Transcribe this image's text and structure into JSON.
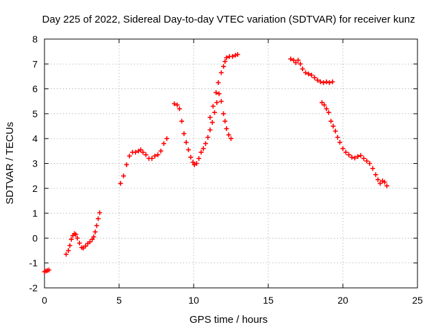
{
  "chart_data": {
    "type": "scatter",
    "title": "Day 225 of 2022, Sidereal Day-to-day VTEC variation (SDTVAR) for receiver kunz",
    "xlabel": "GPS time / hours",
    "ylabel": "SDTVAR / TECUs",
    "xlim": [
      0,
      25
    ],
    "ylim": [
      -2,
      8
    ],
    "x_ticks": [
      0,
      5,
      10,
      15,
      20,
      25
    ],
    "y_ticks": [
      -2,
      -1,
      0,
      1,
      2,
      3,
      4,
      5,
      6,
      7,
      8
    ],
    "grid": true,
    "marker": "plus",
    "color": "#ff0000",
    "series": [
      {
        "points": [
          [
            0.0,
            -1.35
          ],
          [
            0.1,
            -1.32
          ],
          [
            0.2,
            -1.3
          ],
          [
            0.3,
            -1.28
          ],
          [
            1.45,
            -0.65
          ],
          [
            1.6,
            -0.5
          ],
          [
            1.7,
            -0.3
          ],
          [
            1.8,
            -0.05
          ],
          [
            1.9,
            0.1
          ],
          [
            2.0,
            0.18
          ],
          [
            2.1,
            0.15
          ],
          [
            2.2,
            0.0
          ],
          [
            2.35,
            -0.2
          ],
          [
            2.5,
            -0.38
          ],
          [
            2.6,
            -0.4
          ],
          [
            2.75,
            -0.32
          ],
          [
            2.9,
            -0.22
          ],
          [
            3.05,
            -0.15
          ],
          [
            3.2,
            -0.05
          ],
          [
            3.3,
            0.05
          ],
          [
            3.4,
            0.25
          ],
          [
            3.5,
            0.5
          ],
          [
            3.6,
            0.78
          ],
          [
            3.7,
            1.02
          ],
          [
            5.1,
            2.2
          ],
          [
            5.3,
            2.5
          ],
          [
            5.5,
            2.95
          ],
          [
            5.7,
            3.3
          ],
          [
            5.9,
            3.45
          ],
          [
            6.1,
            3.45
          ],
          [
            6.3,
            3.5
          ],
          [
            6.45,
            3.55
          ],
          [
            6.6,
            3.45
          ],
          [
            6.8,
            3.35
          ],
          [
            7.0,
            3.2
          ],
          [
            7.2,
            3.2
          ],
          [
            7.4,
            3.3
          ],
          [
            7.6,
            3.35
          ],
          [
            7.8,
            3.5
          ],
          [
            8.0,
            3.8
          ],
          [
            8.2,
            4.0
          ],
          [
            8.7,
            5.4
          ],
          [
            8.9,
            5.35
          ],
          [
            9.05,
            5.2
          ],
          [
            9.2,
            4.7
          ],
          [
            9.35,
            4.2
          ],
          [
            9.5,
            3.85
          ],
          [
            9.65,
            3.55
          ],
          [
            9.8,
            3.25
          ],
          [
            9.95,
            3.05
          ],
          [
            10.05,
            2.95
          ],
          [
            10.2,
            3.0
          ],
          [
            10.35,
            3.2
          ],
          [
            10.5,
            3.45
          ],
          [
            10.65,
            3.6
          ],
          [
            10.8,
            3.8
          ],
          [
            10.95,
            4.05
          ],
          [
            11.1,
            4.35
          ],
          [
            11.25,
            4.65
          ],
          [
            11.4,
            5.05
          ],
          [
            11.55,
            5.45
          ],
          [
            11.7,
            5.8
          ],
          [
            11.85,
            5.5
          ],
          [
            12.0,
            5.0
          ],
          [
            12.1,
            4.7
          ],
          [
            12.2,
            4.4
          ],
          [
            12.35,
            4.15
          ],
          [
            12.5,
            4.0
          ],
          [
            11.1,
            4.85
          ],
          [
            11.3,
            5.3
          ],
          [
            11.5,
            5.85
          ],
          [
            11.65,
            6.25
          ],
          [
            11.85,
            6.65
          ],
          [
            12.0,
            6.9
          ],
          [
            12.1,
            7.1
          ],
          [
            12.2,
            7.25
          ],
          [
            12.4,
            7.3
          ],
          [
            12.6,
            7.3
          ],
          [
            12.8,
            7.35
          ],
          [
            12.95,
            7.38
          ],
          [
            16.5,
            7.2
          ],
          [
            16.7,
            7.15
          ],
          [
            16.85,
            7.05
          ],
          [
            17.0,
            7.15
          ],
          [
            17.15,
            7.0
          ],
          [
            17.3,
            6.8
          ],
          [
            17.5,
            6.65
          ],
          [
            17.7,
            6.6
          ],
          [
            17.9,
            6.55
          ],
          [
            18.1,
            6.45
          ],
          [
            18.3,
            6.35
          ],
          [
            18.5,
            6.28
          ],
          [
            18.7,
            6.25
          ],
          [
            18.9,
            6.28
          ],
          [
            19.1,
            6.25
          ],
          [
            19.3,
            6.28
          ],
          [
            18.6,
            5.45
          ],
          [
            18.75,
            5.35
          ],
          [
            18.9,
            5.2
          ],
          [
            19.05,
            5.05
          ],
          [
            19.2,
            4.7
          ],
          [
            19.35,
            4.5
          ],
          [
            19.5,
            4.3
          ],
          [
            19.65,
            4.05
          ],
          [
            19.8,
            3.85
          ],
          [
            20.0,
            3.6
          ],
          [
            20.2,
            3.45
          ],
          [
            20.4,
            3.35
          ],
          [
            20.6,
            3.25
          ],
          [
            20.8,
            3.22
          ],
          [
            21.0,
            3.28
          ],
          [
            21.2,
            3.32
          ],
          [
            21.4,
            3.2
          ],
          [
            21.6,
            3.1
          ],
          [
            21.8,
            3.0
          ],
          [
            22.0,
            2.8
          ],
          [
            22.2,
            2.55
          ],
          [
            22.35,
            2.35
          ],
          [
            22.5,
            2.2
          ],
          [
            22.65,
            2.3
          ],
          [
            22.8,
            2.25
          ],
          [
            22.95,
            2.1
          ]
        ]
      }
    ]
  }
}
